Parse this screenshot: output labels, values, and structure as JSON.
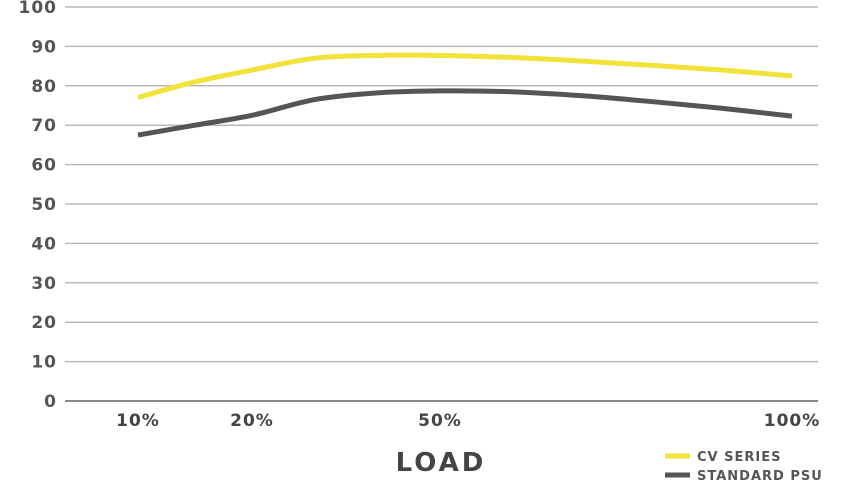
{
  "chart_data": {
    "type": "line",
    "xlabel": "LOAD",
    "ylabel": "",
    "title": "",
    "ylim": [
      0,
      100
    ],
    "yticks": [
      "100",
      "90",
      "80",
      "70",
      "60",
      "50",
      "40",
      "30",
      "20",
      "10",
      "0"
    ],
    "grid": true,
    "legend_position": "bottom-right",
    "x_tick_labels": [
      {
        "label": "10%",
        "value": 10
      },
      {
        "label": "20%",
        "value": 20
      },
      {
        "label": "50%",
        "value": 50
      },
      {
        "label": "100%",
        "value": 100
      }
    ],
    "series": [
      {
        "name": "CV SERIES",
        "color": "#f2e23a",
        "points": [
          [
            10,
            77
          ],
          [
            15,
            81
          ],
          [
            20,
            84
          ],
          [
            30,
            87
          ],
          [
            40,
            87.7
          ],
          [
            50,
            87.7
          ],
          [
            60,
            87.2
          ],
          [
            70,
            86.3
          ],
          [
            80,
            85.2
          ],
          [
            90,
            84
          ],
          [
            100,
            82.5
          ]
        ]
      },
      {
        "name": "STANDARD PSU",
        "color": "#555555",
        "points": [
          [
            10,
            67.5
          ],
          [
            15,
            70
          ],
          [
            20,
            72.5
          ],
          [
            30,
            76.5
          ],
          [
            40,
            78.2
          ],
          [
            50,
            78.7
          ],
          [
            60,
            78.5
          ],
          [
            70,
            77.5
          ],
          [
            80,
            76
          ],
          [
            90,
            74.3
          ],
          [
            100,
            72.3
          ]
        ]
      }
    ]
  }
}
